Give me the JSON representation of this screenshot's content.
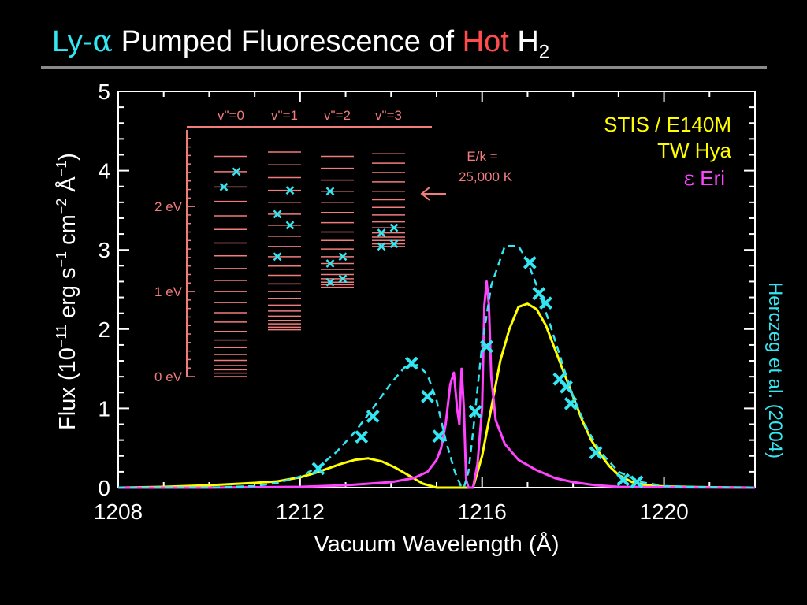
{
  "title": {
    "part1": "Ly-",
    "alpha": "α",
    "part2": " Pumped Fluorescence of ",
    "hot": "Hot",
    "part3": " H",
    "sub": "2"
  },
  "colors": {
    "yellow": "#ffff00",
    "magenta": "#ff44ff",
    "cyan": "#33e6f2",
    "salmon": "#f07c7c",
    "axis": "#ffffff",
    "rule": "#8a8a8a"
  },
  "chart_data": {
    "type": "line",
    "xlabel": "Vacuum Wavelength (Å)",
    "ylabel_parts": {
      "p1": "Flux (10",
      "e1": "−11",
      "p2": " erg s",
      "e2": "−1",
      "p3": " cm",
      "e3": "−2",
      "p4": " Å",
      "e4": "−1",
      "p5": ")"
    },
    "xlim": [
      1208,
      1222
    ],
    "ylim": [
      0,
      5
    ],
    "xticks": [
      1208,
      1212,
      1216,
      1220
    ],
    "yticks": [
      0,
      1,
      2,
      3,
      4,
      5
    ],
    "legend_placement": "top-right",
    "legend": {
      "instrument": "STIS / E140M",
      "tw_hya": "TW Hya",
      "eps_symbol": "ε",
      "eps_eri": " Eri"
    },
    "credit": "Herczeg et al. (2004)",
    "series": [
      {
        "name": "TW Hya",
        "color": "#ffff00",
        "style": "solid",
        "x": [
          1208.0,
          1209.0,
          1210.0,
          1211.0,
          1211.5,
          1212.0,
          1212.3,
          1212.6,
          1212.9,
          1213.2,
          1213.5,
          1213.8,
          1214.1,
          1214.4,
          1214.7,
          1215.0,
          1215.2,
          1215.4,
          1215.6,
          1215.8,
          1216.0,
          1216.2,
          1216.4,
          1216.6,
          1216.8,
          1217.0,
          1217.2,
          1217.4,
          1217.6,
          1217.8,
          1218.0,
          1218.2,
          1218.4,
          1218.6,
          1218.8,
          1219.0,
          1219.3,
          1219.6,
          1220.0,
          1220.5,
          1221.0,
          1222.0
        ],
        "y": [
          0.0,
          0.01,
          0.03,
          0.06,
          0.08,
          0.13,
          0.18,
          0.24,
          0.3,
          0.35,
          0.37,
          0.33,
          0.25,
          0.15,
          0.05,
          0.0,
          0.0,
          0.0,
          0.0,
          0.0,
          0.4,
          1.0,
          1.6,
          2.0,
          2.28,
          2.32,
          2.25,
          2.05,
          1.75,
          1.45,
          1.15,
          0.85,
          0.6,
          0.42,
          0.27,
          0.16,
          0.07,
          0.03,
          0.015,
          0.01,
          0.005,
          0.0
        ]
      },
      {
        "name": "ε Eri",
        "color": "#ff44ff",
        "style": "solid",
        "x": [
          1208.0,
          1210.0,
          1212.0,
          1213.0,
          1214.0,
          1214.5,
          1214.8,
          1215.0,
          1215.1,
          1215.2,
          1215.3,
          1215.38,
          1215.45,
          1215.5,
          1215.55,
          1215.6,
          1215.65,
          1215.7,
          1215.8,
          1215.9,
          1216.0,
          1216.05,
          1216.1,
          1216.15,
          1216.2,
          1216.3,
          1216.5,
          1216.8,
          1217.2,
          1217.6,
          1218.0,
          1218.5,
          1219.0,
          1220.0,
          1222.0
        ],
        "y": [
          0.0,
          0.0,
          0.01,
          0.03,
          0.07,
          0.12,
          0.2,
          0.35,
          0.5,
          0.8,
          1.3,
          1.45,
          1.0,
          0.8,
          1.5,
          1.0,
          0.1,
          0.0,
          0.0,
          0.3,
          1.0,
          2.3,
          2.6,
          2.3,
          1.4,
          0.85,
          0.55,
          0.35,
          0.22,
          0.12,
          0.07,
          0.03,
          0.01,
          0.005,
          0.0
        ]
      },
      {
        "name": "TW Hya model",
        "color": "#33e6f2",
        "style": "dashed",
        "x": [
          1208.0,
          1210.0,
          1211.0,
          1211.5,
          1212.0,
          1212.4,
          1212.8,
          1213.2,
          1213.6,
          1214.0,
          1214.3,
          1214.6,
          1214.8,
          1215.0,
          1215.2,
          1215.4,
          1215.55,
          1215.6,
          1215.7,
          1215.8,
          1215.9,
          1216.0,
          1216.2,
          1216.5,
          1216.8,
          1217.0,
          1217.2,
          1217.5,
          1217.8,
          1218.0,
          1218.3,
          1218.6,
          1219.0,
          1219.5,
          1220.0,
          1221.0,
          1222.0
        ],
        "y": [
          0.0,
          0.0,
          0.02,
          0.06,
          0.14,
          0.26,
          0.45,
          0.7,
          1.0,
          1.32,
          1.52,
          1.55,
          1.42,
          1.1,
          0.6,
          0.2,
          0.0,
          0.0,
          0.2,
          0.7,
          1.25,
          1.8,
          2.55,
          3.05,
          3.05,
          2.85,
          2.55,
          2.05,
          1.5,
          1.15,
          0.75,
          0.45,
          0.2,
          0.07,
          0.02,
          0.005,
          0.0
        ]
      },
      {
        "name": "TW Hya measured",
        "color": "#33e6f2",
        "style": "markers",
        "x": [
          1212.4,
          1213.35,
          1213.6,
          1214.45,
          1214.8,
          1215.05,
          1215.85,
          1216.1,
          1217.05,
          1217.25,
          1217.4,
          1217.7,
          1217.85,
          1217.95,
          1218.5,
          1219.1,
          1219.4
        ],
        "y": [
          0.24,
          0.64,
          0.9,
          1.57,
          1.15,
          0.65,
          0.96,
          1.78,
          2.84,
          2.45,
          2.33,
          1.37,
          1.27,
          1.06,
          0.44,
          0.1,
          0.07
        ]
      }
    ],
    "inset": {
      "type": "energy_levels",
      "ylim": [
        0,
        2.9
      ],
      "yticks": [
        0,
        1,
        2
      ],
      "ytick_labels": [
        "0 eV",
        "1 eV",
        "2 eV"
      ],
      "annotation_line1": "E/k =",
      "annotation_line2": "25,000 K",
      "annotation_energy_ev": 2.15,
      "columns": [
        {
          "label": "v\"=0",
          "levels_ev": [
            0.0,
            0.04,
            0.08,
            0.13,
            0.19,
            0.26,
            0.34,
            0.43,
            0.53,
            0.64,
            0.75,
            0.87,
            1.0,
            1.13,
            1.27,
            1.42,
            1.57,
            1.73,
            1.89,
            2.06,
            2.23,
            2.41,
            2.59
          ],
          "marked_ev": [
            2.23,
            2.41
          ]
        },
        {
          "label": "v\"=1",
          "levels_ev": [
            0.55,
            0.58,
            0.62,
            0.66,
            0.71,
            0.77,
            0.84,
            0.92,
            1.0,
            1.09,
            1.19,
            1.3,
            1.41,
            1.53,
            1.65,
            1.78,
            1.91,
            2.05,
            2.19,
            2.34,
            2.49,
            2.64
          ],
          "marked_ev": [
            1.41,
            1.78,
            1.91,
            2.19
          ]
        },
        {
          "label": "v\"=2",
          "levels_ev": [
            1.05,
            1.08,
            1.11,
            1.15,
            1.2,
            1.26,
            1.33,
            1.41,
            1.5,
            1.6,
            1.7,
            1.81,
            1.93,
            2.05,
            2.18,
            2.31,
            2.45,
            2.59
          ],
          "marked_ev": [
            1.11,
            1.15,
            1.33,
            1.41,
            2.18
          ]
        },
        {
          "label": "v\"=3",
          "levels_ev": [
            1.53,
            1.56,
            1.6,
            1.64,
            1.69,
            1.75,
            1.82,
            1.9,
            1.99,
            2.08,
            2.18,
            2.29,
            2.4,
            2.51,
            2.62
          ],
          "marked_ev": [
            1.53,
            1.56,
            1.69,
            1.75
          ]
        }
      ]
    }
  }
}
